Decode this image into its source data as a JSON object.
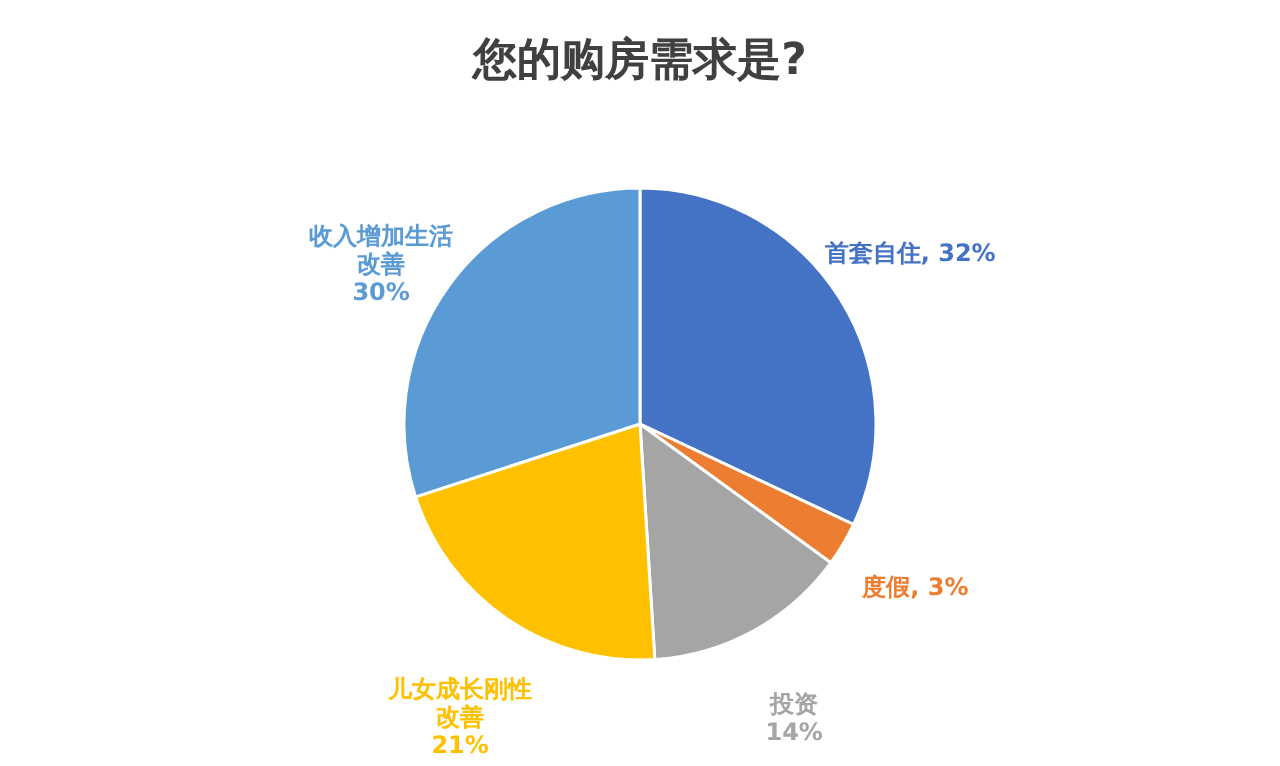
{
  "chart_data": {
    "type": "pie",
    "title": "您的购房需求是?",
    "categories": [
      "首套自住",
      "度假",
      "投资",
      "儿女成长刚性改善",
      "收入增加生活改善"
    ],
    "values": [
      32,
      3,
      14,
      21,
      30
    ],
    "value_labels": [
      "32%",
      "3%",
      "14%",
      "21%",
      "30%"
    ],
    "colors": [
      "#4472c4",
      "#ed7d31",
      "#a5a5a5",
      "#ffc000",
      "#5b9bd5"
    ]
  }
}
